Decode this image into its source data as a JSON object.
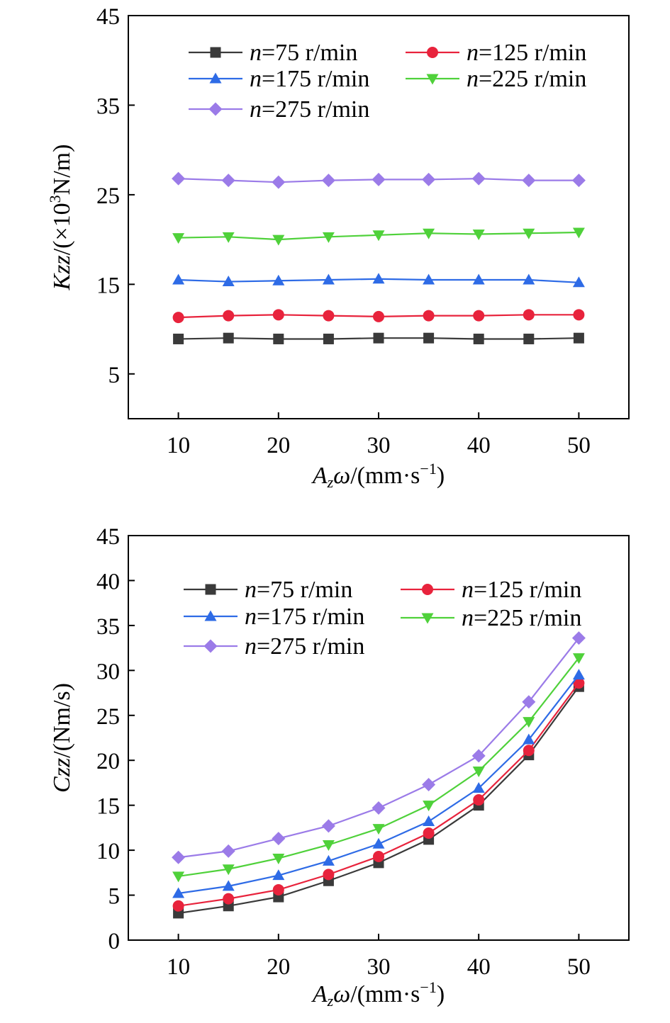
{
  "chart_data": [
    {
      "type": "line",
      "id": "kzz",
      "ylabel": {
        "symbol": "Kzz",
        "unit_prefix": "/(×10",
        "exponent": "3",
        "unit_suffix": "N/m)"
      },
      "xlabel": {
        "symbol": "A",
        "subscript": "z",
        "omega": "ω",
        "unit_prefix": "/(mm·s",
        "exponent": "−1",
        "unit_suffix": ")"
      },
      "xlim": [
        5,
        55
      ],
      "ylim": [
        0,
        45
      ],
      "x_ticks": [
        "10",
        "20",
        "30",
        "40",
        "50"
      ],
      "y_ticks": [
        "5",
        "15",
        "25",
        "35",
        "45"
      ],
      "x": [
        10,
        15,
        20,
        25,
        30,
        35,
        40,
        45,
        50
      ],
      "legend_position": "top",
      "series": [
        {
          "name": "n=75 r/min",
          "n_symbol": "n",
          "rest": "=75 r/min",
          "color": "#3a3a3a",
          "marker": "square",
          "values": [
            8.9,
            9.0,
            8.9,
            8.9,
            9.0,
            9.0,
            8.9,
            8.9,
            9.0
          ]
        },
        {
          "name": "n=125 r/min",
          "n_symbol": "n",
          "rest": "=125 r/min",
          "color": "#e8233c",
          "marker": "circle",
          "values": [
            11.3,
            11.5,
            11.6,
            11.5,
            11.4,
            11.5,
            11.5,
            11.6,
            11.6
          ]
        },
        {
          "name": "n=175 r/min",
          "n_symbol": "n",
          "rest": "=175 r/min",
          "color": "#2e6be6",
          "marker": "triangle-up",
          "values": [
            15.5,
            15.3,
            15.4,
            15.5,
            15.6,
            15.5,
            15.5,
            15.5,
            15.2
          ]
        },
        {
          "name": "n=225 r/min",
          "n_symbol": "n",
          "rest": "=225 r/min",
          "color": "#4fd13a",
          "marker": "triangle-down",
          "values": [
            20.2,
            20.3,
            20.0,
            20.3,
            20.5,
            20.7,
            20.6,
            20.7,
            20.8
          ]
        },
        {
          "name": "n=275 r/min",
          "n_symbol": "n",
          "rest": "=275 r/min",
          "color": "#9b7be8",
          "marker": "diamond",
          "values": [
            26.8,
            26.6,
            26.4,
            26.6,
            26.7,
            26.7,
            26.8,
            26.6,
            26.6
          ]
        }
      ]
    },
    {
      "type": "line",
      "id": "czz",
      "ylabel": {
        "symbol": "Czz",
        "unit_prefix": "/(Nm/s)",
        "exponent": "",
        "unit_suffix": ""
      },
      "xlabel": {
        "symbol": "A",
        "subscript": "z",
        "omega": "ω",
        "unit_prefix": "/(mm·s",
        "exponent": "−1",
        "unit_suffix": ")"
      },
      "xlim": [
        5,
        55
      ],
      "ylim": [
        0,
        45
      ],
      "x_ticks": [
        "10",
        "20",
        "30",
        "40",
        "50"
      ],
      "y_ticks": [
        "0",
        "5",
        "10",
        "15",
        "20",
        "25",
        "30",
        "35",
        "40",
        "45"
      ],
      "x": [
        10,
        15,
        20,
        25,
        30,
        35,
        40,
        45,
        50
      ],
      "legend_position": "top-left",
      "series": [
        {
          "name": "n=75 r/min",
          "n_symbol": "n",
          "rest": "=75 r/min",
          "color": "#3a3a3a",
          "marker": "square",
          "values": [
            3.0,
            3.8,
            4.8,
            6.6,
            8.6,
            11.2,
            15.0,
            20.6,
            28.2
          ]
        },
        {
          "name": "n=125 r/min",
          "n_symbol": "n",
          "rest": "=125 r/min",
          "color": "#e8233c",
          "marker": "circle",
          "values": [
            3.8,
            4.6,
            5.6,
            7.3,
            9.3,
            11.9,
            15.6,
            21.1,
            28.6
          ]
        },
        {
          "name": "n=175 r/min",
          "n_symbol": "n",
          "rest": "=175 r/min",
          "color": "#2e6be6",
          "marker": "triangle-up",
          "values": [
            5.2,
            6.0,
            7.2,
            8.8,
            10.7,
            13.2,
            16.9,
            22.3,
            29.5
          ]
        },
        {
          "name": "n=225 r/min",
          "n_symbol": "n",
          "rest": "=225 r/min",
          "color": "#4fd13a",
          "marker": "triangle-down",
          "values": [
            7.1,
            7.9,
            9.1,
            10.6,
            12.4,
            15.0,
            18.8,
            24.3,
            31.4
          ]
        },
        {
          "name": "n=275 r/min",
          "n_symbol": "n",
          "rest": "=275 r/min",
          "color": "#9b7be8",
          "marker": "diamond",
          "values": [
            9.2,
            9.9,
            11.3,
            12.7,
            14.7,
            17.3,
            20.5,
            26.5,
            33.6
          ]
        }
      ]
    }
  ]
}
